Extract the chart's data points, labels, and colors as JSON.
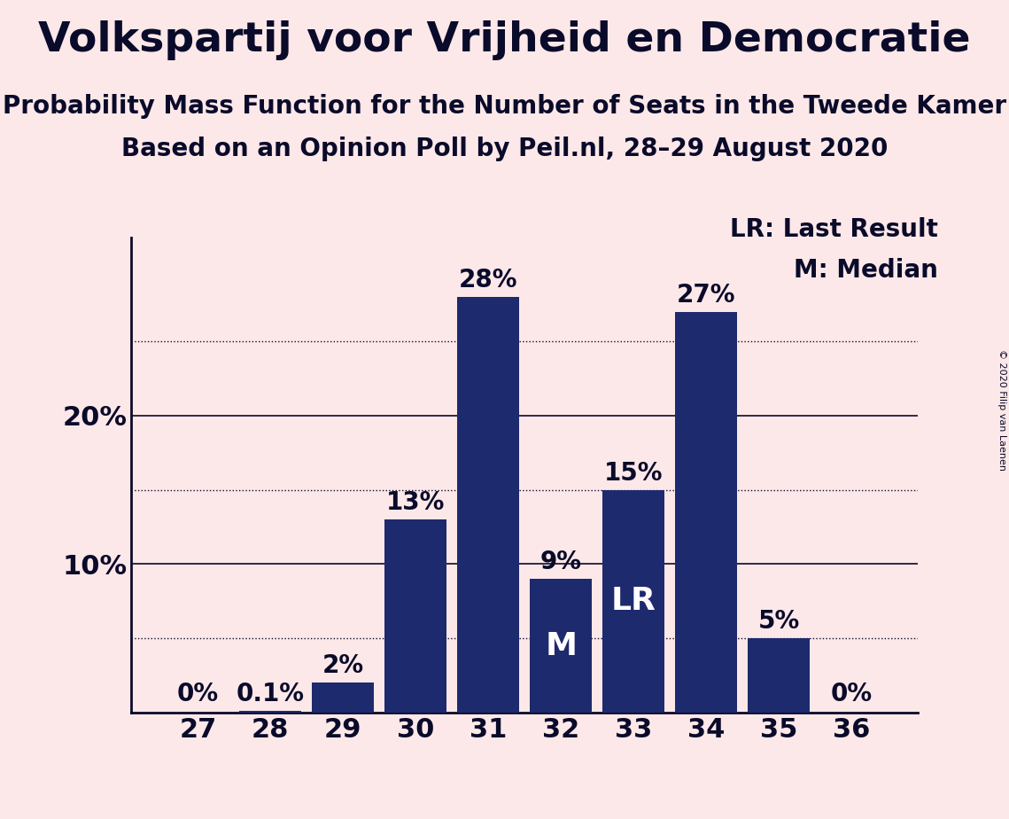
{
  "title": "Volkspartij voor Vrijheid en Democratie",
  "subtitle1": "Probability Mass Function for the Number of Seats in the Tweede Kamer",
  "subtitle2": "Based on an Opinion Poll by Peil.nl, 28–29 August 2020",
  "copyright": "© 2020 Filip van Laenen",
  "categories": [
    27,
    28,
    29,
    30,
    31,
    32,
    33,
    34,
    35,
    36
  ],
  "values": [
    0.0,
    0.1,
    2.0,
    13.0,
    28.0,
    9.0,
    15.0,
    27.0,
    5.0,
    0.0
  ],
  "bar_labels": [
    "0%",
    "0.1%",
    "2%",
    "13%",
    "28%",
    "9%",
    "15%",
    "27%",
    "5%",
    "0%"
  ],
  "bar_color": "#1e2a6e",
  "background_color": "#fce8e8",
  "title_color": "#0a0a2a",
  "yticks": [
    10,
    20
  ],
  "ylim": [
    0,
    32
  ],
  "dotted_lines": [
    5,
    15,
    25
  ],
  "solid_lines": [
    10,
    20
  ],
  "median_bar": 32,
  "last_result_bar": 33,
  "legend_lr": "LR: Last Result",
  "legend_m": "M: Median",
  "title_fontsize": 34,
  "subtitle_fontsize": 20,
  "bar_label_fontsize": 20,
  "axis_label_fontsize": 22,
  "inner_label_fontsize": 26,
  "legend_fontsize": 20
}
